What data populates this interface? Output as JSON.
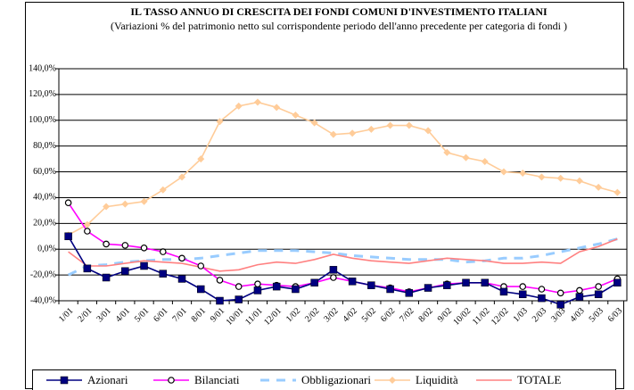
{
  "chart_data": {
    "type": "line",
    "title": "IL TASSO ANNUO DI CRESCITA DEI FONDI COMUNI D'INVESTIMENTO ITALIANI",
    "subtitle": "(Variazioni % del patrimonio netto sul corrispondente periodo dell'anno precedente per categoria di fondi )",
    "categories": [
      "1/01",
      "2/01",
      "3/01",
      "4/01",
      "5/01",
      "6/01",
      "7/01",
      "8/01",
      "9/01",
      "10/01",
      "11/01",
      "12/01",
      "1/02",
      "2/02",
      "3/02",
      "4/02",
      "5/02",
      "6/02",
      "7/02",
      "8/02",
      "9/02",
      "10/02",
      "11/02",
      "12/02",
      "1/03",
      "2/03",
      "3/03",
      "4/03",
      "5/03",
      "6/03"
    ],
    "series": [
      {
        "name": "Azionari",
        "color": "#000080",
        "marker": "square",
        "values": [
          10,
          -15,
          -22,
          -17,
          -13,
          -19,
          -23,
          -31,
          -40,
          -39,
          -32,
          -29,
          -31,
          -26,
          -16,
          -25,
          -28,
          -31,
          -34,
          -30,
          -28,
          -26,
          -26,
          -33,
          -35,
          -38,
          -43,
          -37,
          -35,
          -26
        ]
      },
      {
        "name": "Bilanciati",
        "color": "#ff00ff",
        "marker": "circle",
        "values": [
          36,
          14,
          4,
          3,
          1,
          -2,
          -7,
          -13,
          -24,
          -29,
          -27,
          -28,
          -29,
          -26,
          -22,
          -25,
          -28,
          -30,
          -33,
          -30,
          -27,
          -26,
          -26,
          -29,
          -29,
          -31,
          -34,
          -32,
          -29,
          -23
        ]
      },
      {
        "name": "Obbligazionari",
        "color": "#99ccff",
        "dashed": true,
        "values": [
          -20,
          -13,
          -12,
          -10,
          -9,
          -8,
          -8,
          -7,
          -5,
          -3,
          -1,
          -1,
          -1,
          -2,
          -3,
          -5,
          -6,
          -7,
          -8,
          -8,
          -8,
          -10,
          -9,
          -7,
          -7,
          -5,
          -2,
          1,
          4,
          8
        ]
      },
      {
        "name": "Liquidità",
        "color": "#ffcc99",
        "marker": "diamond",
        "values": [
          11,
          19,
          33,
          35,
          37,
          46,
          56,
          70,
          99,
          111,
          114,
          110,
          104,
          98,
          89,
          90,
          93,
          96,
          96,
          92,
          75,
          71,
          68,
          60,
          59,
          56,
          55,
          53,
          48,
          44
        ]
      },
      {
        "name": "TOTALE",
        "color": "#ff8080",
        "values": [
          -2,
          -13,
          -13,
          -11,
          -9,
          -10,
          -11,
          -14,
          -17,
          -16,
          -12,
          -10,
          -11,
          -8,
          -4,
          -7,
          -9,
          -10,
          -11,
          -9,
          -7,
          -8,
          -9,
          -11,
          -11,
          -10,
          -11,
          -2,
          2,
          8
        ]
      }
    ],
    "ylim": [
      -40,
      140
    ],
    "yticks": [
      {
        "value": 140,
        "label": "140,0%"
      },
      {
        "value": 120,
        "label": "120,0%"
      },
      {
        "value": 100,
        "label": "100,0%"
      },
      {
        "value": 80,
        "label": "80,0%"
      },
      {
        "value": 60,
        "label": "60,0%"
      },
      {
        "value": 40,
        "label": "40,0%"
      },
      {
        "value": 20,
        "label": "20,0%"
      },
      {
        "value": 0,
        "label": "0,0%"
      },
      {
        "value": -20,
        "label": "-20,0%"
      },
      {
        "value": -40,
        "label": "-40,0%"
      }
    ],
    "grid": true,
    "legend": "bottom"
  }
}
